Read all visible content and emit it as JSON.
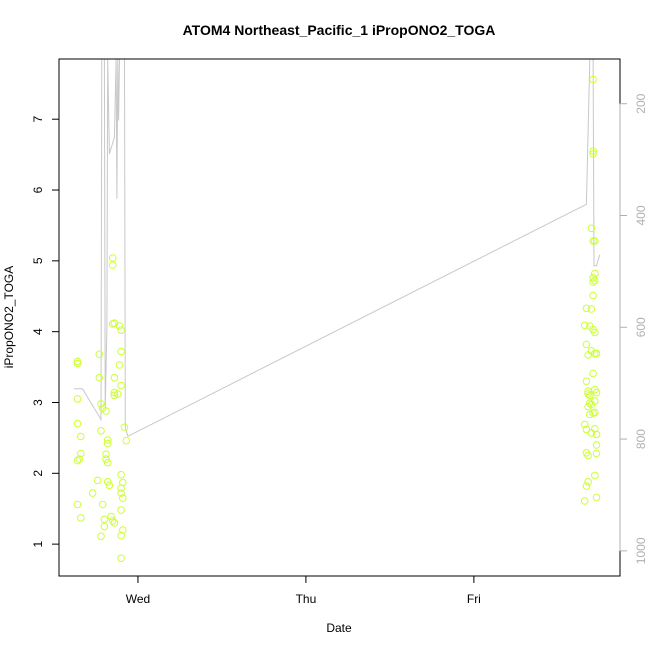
{
  "chart_data": {
    "type": "scatter",
    "title": "ATOM4 Northeast_Pacific_1 iPropONO2_TOGA",
    "xlabel": "Date",
    "ylabel": "iPropONO2_TOGA",
    "x_ticks": [
      {
        "label": "Wed",
        "day": 1.0
      },
      {
        "label": "Thu",
        "day": 2.0
      },
      {
        "label": "Fri",
        "day": 3.0
      }
    ],
    "xlim_days": [
      0.53,
      3.87
    ],
    "ylim": [
      0.55,
      7.85
    ],
    "y_ticks": [
      1,
      2,
      3,
      4,
      5,
      6,
      7
    ],
    "right_axis": {
      "ylim": [
        1045,
        120
      ],
      "ticks": [
        200,
        400,
        600,
        800,
        1000
      ],
      "color": "#b0b0b0"
    },
    "point_color": "#ccff33",
    "line_color": "#c8c8c8",
    "grid": false,
    "series": [
      {
        "values": [
          [
            0.64,
            3.55
          ],
          [
            0.64,
            3.58
          ],
          [
            0.64,
            3.05
          ],
          [
            0.64,
            2.7
          ],
          [
            0.64,
            2.18
          ],
          [
            0.65,
            2.2
          ],
          [
            0.66,
            2.28
          ],
          [
            0.66,
            2.52
          ],
          [
            0.64,
            1.56
          ],
          [
            0.66,
            1.37
          ],
          [
            0.73,
            1.72
          ],
          [
            0.76,
            1.9
          ],
          [
            0.77,
            3.68
          ],
          [
            0.77,
            3.35
          ],
          [
            0.78,
            2.98
          ],
          [
            0.79,
            2.92
          ],
          [
            0.78,
            2.6
          ],
          [
            0.79,
            1.56
          ],
          [
            0.8,
            1.35
          ],
          [
            0.8,
            1.25
          ],
          [
            0.78,
            1.11
          ],
          [
            0.81,
            2.88
          ],
          [
            0.82,
            2.47
          ],
          [
            0.82,
            2.42
          ],
          [
            0.81,
            2.27
          ],
          [
            0.81,
            2.2
          ],
          [
            0.82,
            2.15
          ],
          [
            0.82,
            1.88
          ],
          [
            0.83,
            1.83
          ],
          [
            0.84,
            1.39
          ],
          [
            0.85,
            1.33
          ],
          [
            0.86,
            1.3
          ],
          [
            0.85,
            5.04
          ],
          [
            0.85,
            4.94
          ],
          [
            0.86,
            4.12
          ],
          [
            0.85,
            4.11
          ],
          [
            0.86,
            3.35
          ],
          [
            0.86,
            3.14
          ],
          [
            0.86,
            3.1
          ],
          [
            0.88,
            3.12
          ],
          [
            0.89,
            4.08
          ],
          [
            0.9,
            4.02
          ],
          [
            0.9,
            3.72
          ],
          [
            0.89,
            3.53
          ],
          [
            0.9,
            3.24
          ],
          [
            0.9,
            1.98
          ],
          [
            0.91,
            1.87
          ],
          [
            0.9,
            1.79
          ],
          [
            0.9,
            1.72
          ],
          [
            0.91,
            1.65
          ],
          [
            0.9,
            1.48
          ],
          [
            0.91,
            1.2
          ],
          [
            0.9,
            1.12
          ],
          [
            0.92,
            2.65
          ],
          [
            0.93,
            2.46
          ],
          [
            0.9,
            0.8
          ],
          [
            3.67,
            4.33
          ],
          [
            3.66,
            4.09
          ],
          [
            3.67,
            3.82
          ],
          [
            3.68,
            3.67
          ],
          [
            3.67,
            3.3
          ],
          [
            3.68,
            3.16
          ],
          [
            3.68,
            3.12
          ],
          [
            3.69,
            3.1
          ],
          [
            3.69,
            2.99
          ],
          [
            3.7,
            2.97
          ],
          [
            3.68,
            2.94
          ],
          [
            3.69,
            2.83
          ],
          [
            3.66,
            2.69
          ],
          [
            3.67,
            2.62
          ],
          [
            3.7,
            2.57
          ],
          [
            3.67,
            2.29
          ],
          [
            3.68,
            2.25
          ],
          [
            3.68,
            1.88
          ],
          [
            3.67,
            1.82
          ],
          [
            3.66,
            1.61
          ],
          [
            3.71,
            7.56
          ],
          [
            3.71,
            6.55
          ],
          [
            3.71,
            6.51
          ],
          [
            3.7,
            5.46
          ],
          [
            3.71,
            5.28
          ],
          [
            3.72,
            5.28
          ],
          [
            3.72,
            4.82
          ],
          [
            3.71,
            4.76
          ],
          [
            3.72,
            4.72
          ],
          [
            3.71,
            4.7
          ],
          [
            3.71,
            4.51
          ],
          [
            3.7,
            4.32
          ],
          [
            3.69,
            4.08
          ],
          [
            3.71,
            4.03
          ],
          [
            3.72,
            3.99
          ],
          [
            3.7,
            3.73
          ],
          [
            3.72,
            3.69
          ],
          [
            3.73,
            3.69
          ],
          [
            3.71,
            3.41
          ],
          [
            3.72,
            3.18
          ],
          [
            3.73,
            3.14
          ],
          [
            3.72,
            3.02
          ],
          [
            3.72,
            2.86
          ],
          [
            3.71,
            2.85
          ],
          [
            3.72,
            2.63
          ],
          [
            3.73,
            2.55
          ],
          [
            3.73,
            2.4
          ],
          [
            3.73,
            2.28
          ],
          [
            3.72,
            1.97
          ],
          [
            3.73,
            1.66
          ]
        ]
      }
    ],
    "line_series": [
      {
        "axis": "right",
        "values": [
          [
            0.62,
            710
          ],
          [
            0.67,
            710
          ],
          [
            0.78,
            765
          ],
          [
            0.785,
            120
          ],
          [
            0.8,
            120
          ],
          [
            0.805,
            745
          ],
          [
            0.815,
            600
          ],
          [
            0.82,
            120
          ],
          [
            0.825,
            200
          ],
          [
            0.83,
            290
          ],
          [
            0.86,
            260
          ],
          [
            0.87,
            120
          ],
          [
            0.875,
            370
          ],
          [
            0.88,
            120
          ],
          [
            0.885,
            230
          ],
          [
            0.89,
            120
          ],
          [
            0.92,
            120
          ],
          [
            0.925,
            780
          ],
          [
            0.94,
            795
          ],
          [
            3.67,
            380
          ],
          [
            3.69,
            120
          ],
          [
            3.71,
            120
          ],
          [
            3.715,
            490
          ],
          [
            3.73,
            490
          ],
          [
            3.75,
            470
          ]
        ]
      }
    ]
  }
}
